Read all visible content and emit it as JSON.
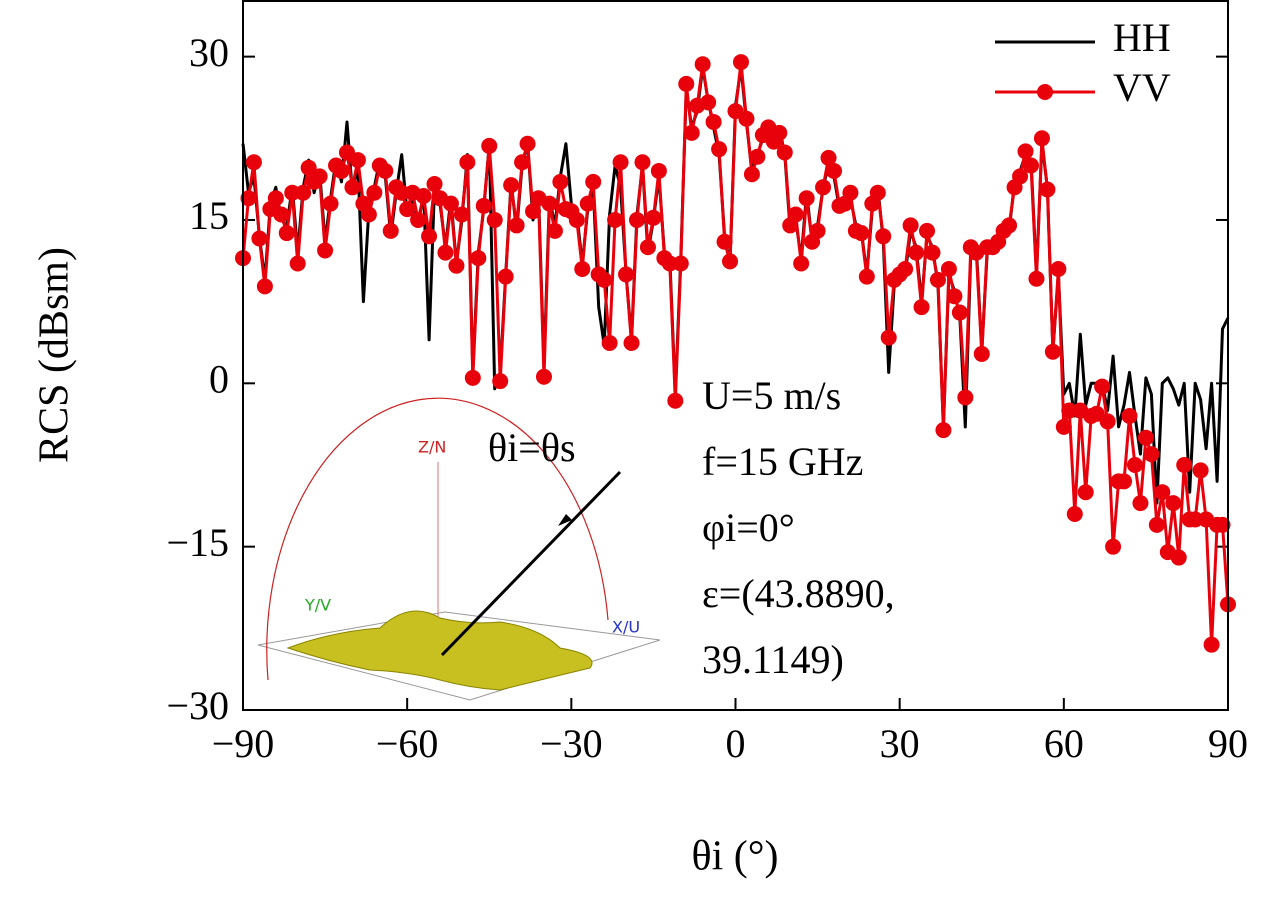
{
  "chart_data": {
    "type": "line",
    "x_label": "θi (°)",
    "y_label": "RCS (dBsm)",
    "xlim": [
      -90,
      90
    ],
    "ylim": [
      -30,
      35.2
    ],
    "xticks": [
      {
        "value": -90,
        "label": "−90"
      },
      {
        "value": -60,
        "label": "−60"
      },
      {
        "value": -30,
        "label": "−30"
      },
      0,
      30,
      60,
      90
    ],
    "yticks": [
      {
        "value": -30,
        "label": "−30"
      },
      {
        "value": -15,
        "label": "−15"
      },
      0,
      15,
      30
    ],
    "legend": "upper right",
    "x": [
      -90,
      -89,
      -88,
      -87,
      -86,
      -85,
      -84,
      -83,
      -82,
      -81,
      -80,
      -79,
      -78,
      -77,
      -76,
      -75,
      -74,
      -73,
      -72,
      -71,
      -70,
      -69,
      -68,
      -67,
      -66,
      -65,
      -64,
      -63,
      -62,
      -61,
      -60,
      -59,
      -58,
      -57,
      -56,
      -55,
      -54,
      -53,
      -52,
      -51,
      -50,
      -49,
      -48,
      -47,
      -46,
      -45,
      -44,
      -43,
      -42,
      -41,
      -40,
      -39,
      -38,
      -37,
      -36,
      -35,
      -34,
      -33,
      -32,
      -31,
      -30,
      -29,
      -28,
      -27,
      -26,
      -25,
      -24,
      -23,
      -22,
      -21,
      -20,
      -19,
      -18,
      -17,
      -16,
      -15,
      -14,
      -13,
      -12,
      -11,
      -10,
      -9,
      -8,
      -7,
      -6,
      -5,
      -4,
      -3,
      -2,
      -1,
      0,
      1,
      2,
      3,
      4,
      5,
      6,
      7,
      8,
      9,
      10,
      11,
      12,
      13,
      14,
      15,
      16,
      17,
      18,
      19,
      20,
      21,
      22,
      23,
      24,
      25,
      26,
      27,
      28,
      29,
      30,
      31,
      32,
      33,
      34,
      35,
      36,
      37,
      38,
      39,
      40,
      41,
      42,
      43,
      44,
      45,
      46,
      47,
      48,
      49,
      50,
      51,
      52,
      53,
      54,
      55,
      56,
      57,
      58,
      59,
      60,
      61,
      62,
      63,
      64,
      65,
      66,
      67,
      68,
      69,
      70,
      71,
      72,
      73,
      74,
      75,
      76,
      77,
      78,
      79,
      80,
      81,
      82,
      83,
      84,
      85,
      86,
      87,
      88,
      89,
      90
    ],
    "series": [
      {
        "name": "HH",
        "color": "#000000",
        "marker": false,
        "values": [
          22,
          17.5,
          19,
          13.5,
          9.5,
          16.5,
          18,
          15,
          14.5,
          18,
          12,
          18,
          20.5,
          17.5,
          19.5,
          13,
          17,
          20.5,
          18.5,
          24,
          17.5,
          20,
          7.5,
          16,
          18,
          20.5,
          19,
          13.5,
          17.5,
          21,
          15.5,
          17,
          14.5,
          17.5,
          4,
          18,
          16.5,
          12.5,
          17,
          11,
          15,
          21,
          1,
          12,
          16,
          22,
          -0.5,
          1,
          10,
          18.5,
          14,
          20,
          22,
          15,
          17.5,
          1.5,
          17,
          14.5,
          19,
          22,
          16.5,
          15.5,
          11,
          16,
          18,
          7,
          3.5,
          15.5,
          20,
          18,
          10,
          4,
          15.5,
          20,
          12,
          15,
          19,
          12,
          11.5,
          -1,
          11.5,
          27,
          23.5,
          25,
          29,
          26,
          23.5,
          21,
          13.5,
          11,
          25.5,
          29,
          24,
          19.5,
          21,
          22.5,
          23,
          22.5,
          23.5,
          21,
          14,
          15,
          11.5,
          17.5,
          13,
          14.5,
          18,
          20,
          19,
          16,
          17,
          17,
          14.5,
          14,
          10,
          16,
          18,
          13,
          1,
          9,
          10.5,
          10,
          14,
          12.5,
          7.5,
          13.5,
          12.5,
          9,
          -4,
          10,
          8.5,
          6,
          -4,
          12,
          12.5,
          3,
          12,
          13,
          13.5,
          14.5,
          14,
          18.5,
          19.5,
          21,
          20.5,
          10,
          22,
          18,
          3,
          10,
          -1,
          0,
          -3,
          4.5,
          -2,
          0,
          0,
          0,
          -2.5,
          2.5,
          -4,
          -2,
          1,
          -3,
          -6.5,
          0.5,
          -1,
          -11,
          0,
          0.5,
          -0.5,
          -2,
          0,
          -10,
          0,
          -1.5,
          -6,
          0,
          -9,
          5,
          6
        ]
      },
      {
        "name": "VV",
        "color": "#e8000b",
        "marker": true,
        "values": [
          11.5,
          17,
          20.3,
          13.3,
          8.9,
          16,
          17,
          15.5,
          13.8,
          17.5,
          11,
          17.5,
          19.8,
          18.5,
          19,
          12.2,
          16.5,
          20,
          19.5,
          21.2,
          18,
          20.5,
          16.5,
          15.5,
          17.5,
          20,
          19.5,
          14,
          18,
          17.5,
          16,
          17.5,
          15,
          17.2,
          13.5,
          18.3,
          17,
          12,
          16.5,
          10.8,
          15.5,
          20.3,
          0.5,
          11.5,
          16.3,
          21.8,
          15,
          0.2,
          9.8,
          18.2,
          14.5,
          20.3,
          22,
          15.8,
          17,
          0.6,
          16.5,
          14,
          18.5,
          16,
          15.8,
          15,
          10.5,
          16.5,
          18.5,
          10,
          9.5,
          3.7,
          15,
          20.3,
          10,
          3.7,
          15,
          20.3,
          12.5,
          15.2,
          19.5,
          11.5,
          11,
          -1.6,
          11,
          27.5,
          23,
          25.5,
          29.3,
          25.8,
          24,
          21.5,
          13,
          11.2,
          25,
          29.5,
          24.3,
          19.2,
          20.8,
          22.8,
          23.5,
          22.2,
          23,
          21.2,
          14.5,
          15.5,
          11,
          17,
          13,
          14,
          18,
          20.7,
          19.5,
          16.3,
          16.5,
          17.5,
          14,
          13.8,
          9.8,
          16.5,
          17.5,
          13.5,
          4.2,
          9.5,
          10,
          10.5,
          14.5,
          12,
          7,
          14,
          12,
          9.5,
          -4.3,
          10.5,
          8,
          6.5,
          -1.3,
          12.5,
          12,
          2.7,
          12.5,
          12.5,
          13,
          14,
          14.5,
          18,
          19,
          21.3,
          20,
          9.6,
          22.5,
          17.8,
          2.9,
          10.5,
          -4,
          -2.5,
          -12,
          -2.5,
          -10,
          -3,
          -2.8,
          -0.3,
          -3.5,
          -15,
          -9,
          -9,
          -3,
          -7.5,
          -11,
          -5,
          -6.5,
          -13,
          -10,
          -15.5,
          -11,
          -16,
          -7.5,
          -12.5,
          -12.5,
          -8,
          -12.5,
          -24,
          -13,
          -13,
          -20.3
        ]
      }
    ],
    "annotations": [
      "U=5 m/s",
      "f=15 GHz",
      "φi=0°",
      "ε=(43.8890,",
      "39.1149)"
    ],
    "inset_title": "θi=θs",
    "inset_labels": [
      "Z/N",
      "Y/V",
      "X/U"
    ]
  }
}
